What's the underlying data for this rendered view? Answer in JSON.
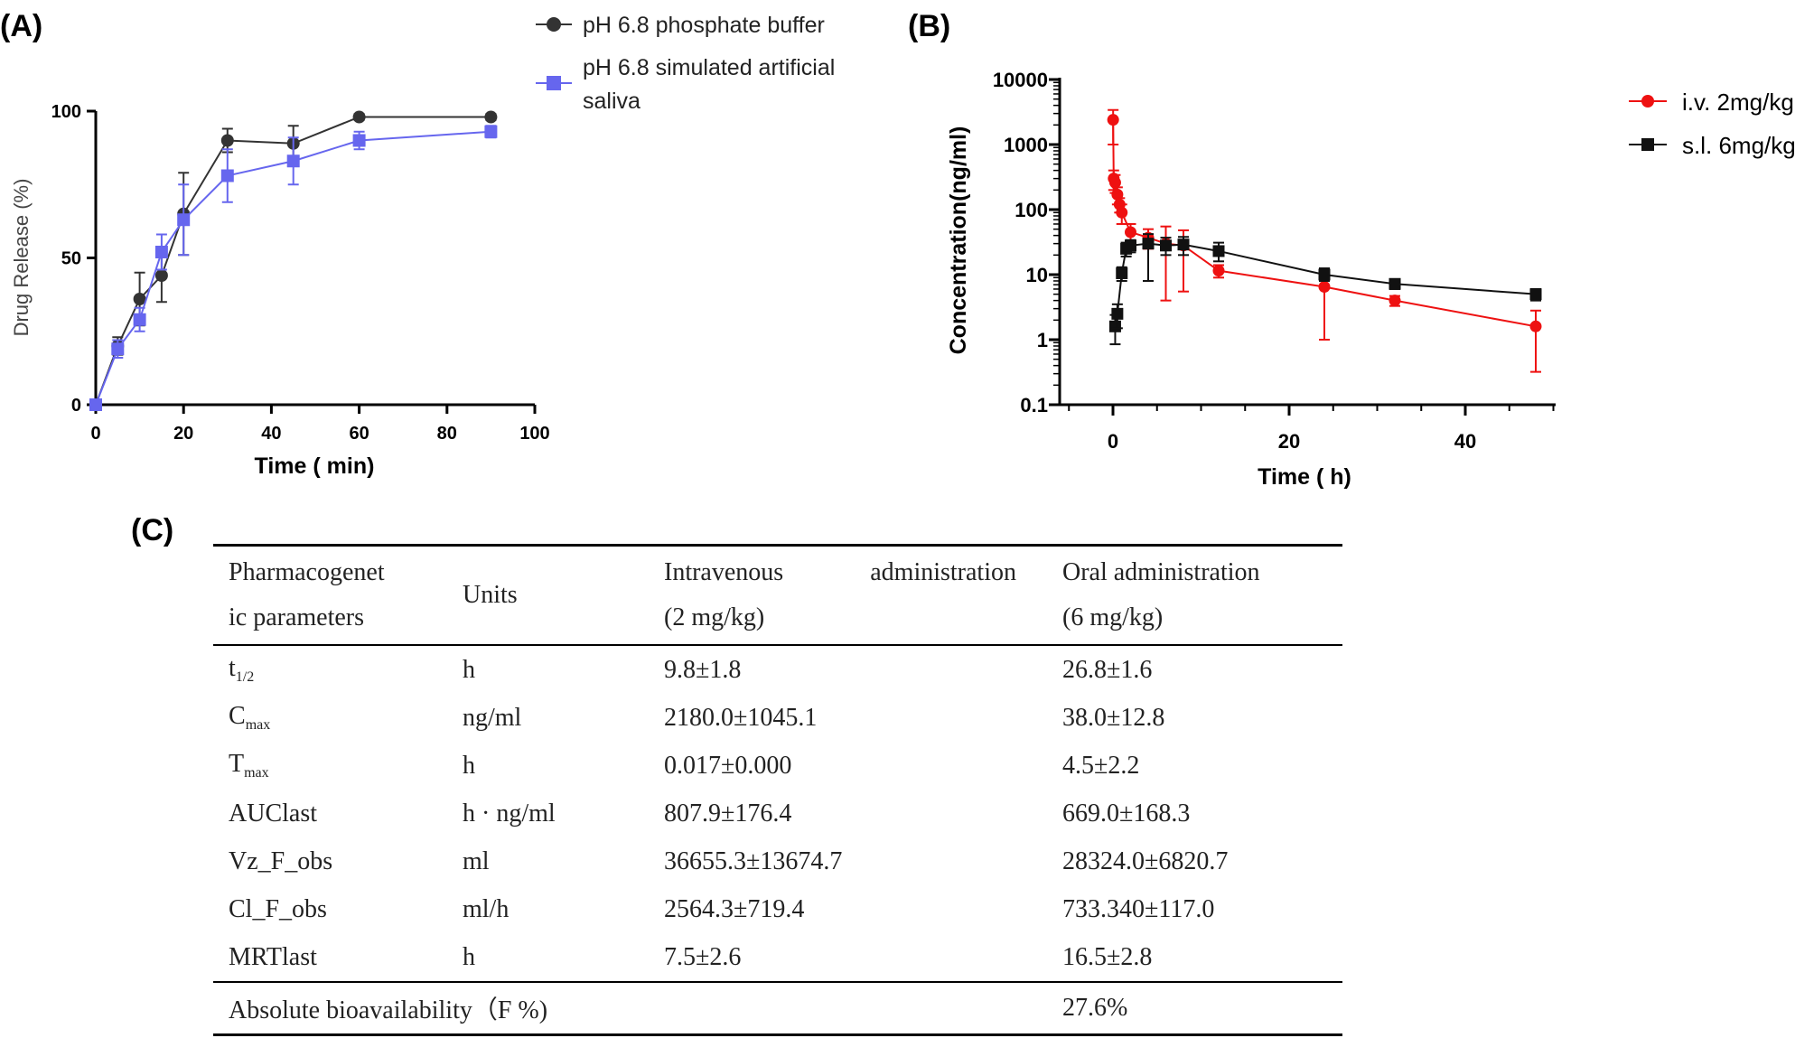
{
  "panel_labels": {
    "a": "(A)",
    "b": "(B)",
    "c": "(C)"
  },
  "colors": {
    "pbs": "#333333",
    "saliva": "#6666ee",
    "iv": "#ee1111",
    "sl": "#111111",
    "axis": "#000000"
  },
  "chart_data": [
    {
      "type": "line",
      "panel": "(A)",
      "xlabel": "Time ( min)",
      "ylabel": "Drug Release (%)",
      "xlim": [
        0,
        100
      ],
      "ylim": [
        0,
        100
      ],
      "xticks": [
        "0",
        "20",
        "40",
        "60",
        "80",
        "100"
      ],
      "yticks": [
        "0",
        "50",
        "100"
      ],
      "legend_position": "top-right outside",
      "series": [
        {
          "name": "pH 6.8 phosphate buffer",
          "marker": "circle",
          "points": [
            [
              0,
              0,
              0
            ],
            [
              5,
              20,
              3
            ],
            [
              10,
              36,
              9
            ],
            [
              15,
              44,
              9
            ],
            [
              20,
              65,
              14
            ],
            [
              30,
              90,
              4
            ],
            [
              45,
              89,
              6
            ],
            [
              60,
              98,
              1
            ],
            [
              90,
              98,
              1
            ]
          ]
        },
        {
          "name": "pH 6.8 simulated artificial saliva",
          "name_lines": [
            "pH 6.8 simulated artificial",
            "saliva"
          ],
          "marker": "square",
          "points": [
            [
              0,
              0,
              0
            ],
            [
              5,
              19,
              3
            ],
            [
              10,
              29,
              4
            ],
            [
              15,
              52,
              6
            ],
            [
              20,
              63,
              12
            ],
            [
              30,
              78,
              9
            ],
            [
              45,
              83,
              8
            ],
            [
              60,
              90,
              3
            ],
            [
              90,
              93,
              2
            ]
          ]
        }
      ]
    },
    {
      "type": "line",
      "panel": "(B)",
      "xlabel": "Time ( h)",
      "ylabel": "Concentration(ng/ml)",
      "yscale": "log",
      "xlim": [
        -5,
        50
      ],
      "ylim": [
        0.1,
        10000
      ],
      "xticks": [
        "0",
        "20",
        "40"
      ],
      "yticks": [
        "0.1",
        "1",
        "10",
        "100",
        "1000",
        "10000"
      ],
      "legend_position": "top-right outside",
      "series": [
        {
          "name": "i.v. 2mg/kg",
          "marker": "circle",
          "points": [
            [
              0.017,
              2400,
              1000,
              3400
            ],
            [
              0.083,
              300,
              200,
              400
            ],
            [
              0.25,
              260,
              180,
              340
            ],
            [
              0.5,
              170,
              120,
              220
            ],
            [
              0.75,
              120,
              90,
              150
            ],
            [
              1,
              90,
              60,
              120
            ],
            [
              2,
              45,
              30,
              60
            ],
            [
              4,
              37,
              25,
              50
            ],
            [
              6,
              30,
              4,
              55
            ],
            [
              8,
              28,
              5.5,
              48
            ],
            [
              12,
              11.5,
              9,
              14
            ],
            [
              24,
              6.5,
              1,
              12
            ],
            [
              32,
              4,
              3.3,
              4.7
            ],
            [
              48,
              1.6,
              0.32,
              2.8
            ]
          ]
        },
        {
          "name": "s.l. 6mg/kg",
          "marker": "square",
          "points": [
            [
              0.25,
              1.6,
              0.85,
              2.4
            ],
            [
              0.5,
              2.5,
              1.5,
              3.5
            ],
            [
              1,
              10.5,
              8,
              13
            ],
            [
              1.5,
              25,
              19,
              31
            ],
            [
              2,
              28,
              22,
              34
            ],
            [
              4,
              30,
              8,
              42
            ],
            [
              6,
              28,
              20,
              37
            ],
            [
              8,
              29,
              20,
              38
            ],
            [
              12,
              23,
              16,
              31
            ],
            [
              24,
              10,
              8,
              12.5
            ],
            [
              32,
              7.2,
              6,
              8.4
            ],
            [
              48,
              5,
              4,
              6
            ]
          ]
        }
      ]
    }
  ],
  "table": {
    "header": {
      "param_lines": [
        "Pharmacogenet",
        "ic parameters"
      ],
      "units": "Units",
      "iv_line1_a": "Intravenous",
      "iv_line1_b": "administration",
      "iv_line2": "(2 mg/kg)",
      "oral_line1": "Oral administration",
      "oral_line2": "(6 mg/kg)"
    },
    "rows": [
      {
        "param": "t",
        "sub": "1/2",
        "units": "h",
        "iv": "9.8±1.8",
        "oral": "26.8±1.6"
      },
      {
        "param": "C",
        "sub": "max",
        "units": "ng/ml",
        "iv": "2180.0±1045.1",
        "oral": "38.0±12.8"
      },
      {
        "param": "T",
        "sub": "max",
        "units": "h",
        "iv": "0.017±0.000",
        "oral": "4.5±2.2"
      },
      {
        "param": "AUClast",
        "sub": "",
        "units": "h · ng/ml",
        "iv": "807.9±176.4",
        "oral": "669.0±168.3"
      },
      {
        "param": "Vz_F_obs",
        "sub": "",
        "units": "ml",
        "iv": "36655.3±13674.7",
        "oral": "28324.0±6820.7"
      },
      {
        "param": "Cl_F_obs",
        "sub": "",
        "units": "ml/h",
        "iv": "2564.3±719.4",
        "oral": "733.340±117.0"
      },
      {
        "param": "MRTlast",
        "sub": "",
        "units": "h",
        "iv": "7.5±2.6",
        "oral": "16.5±2.8"
      }
    ],
    "footer": {
      "label": "Absolute bioavailability（F %)",
      "value": "27.6%"
    }
  }
}
